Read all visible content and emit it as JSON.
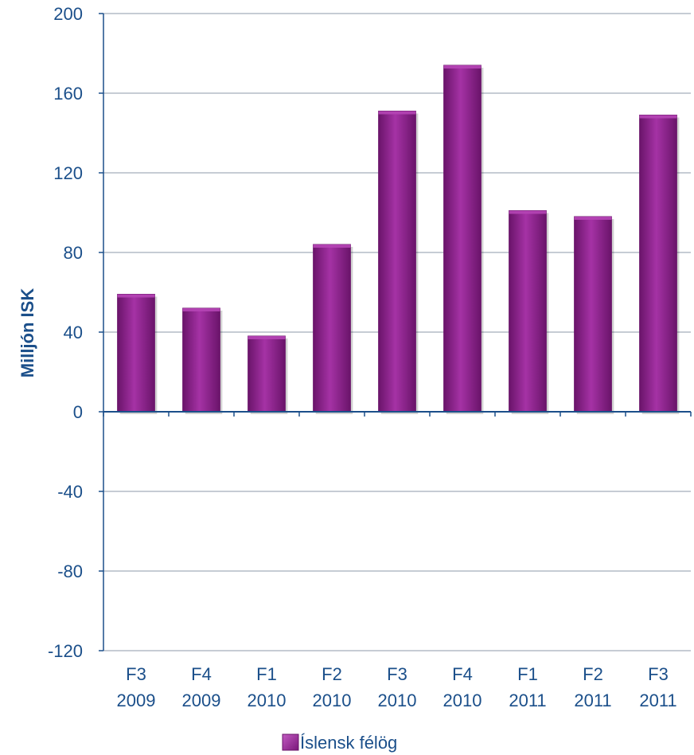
{
  "chart_data": {
    "type": "bar",
    "categories": [
      [
        "F3",
        "2009"
      ],
      [
        "F4",
        "2009"
      ],
      [
        "F1",
        "2010"
      ],
      [
        "F2",
        "2010"
      ],
      [
        "F3",
        "2010"
      ],
      [
        "F4",
        "2010"
      ],
      [
        "F1",
        "2011"
      ],
      [
        "F2",
        "2011"
      ],
      [
        "F3",
        "2011"
      ]
    ],
    "series": [
      {
        "name": "Íslensk félög",
        "values": [
          59,
          52,
          38,
          84,
          151,
          174,
          101,
          98,
          149
        ]
      }
    ],
    "ylabel": "Milljón ISK",
    "xlabel": "",
    "title": "",
    "ylim": [
      -120,
      200
    ],
    "yticks": [
      "200",
      "160",
      "120",
      "80",
      "40",
      "0",
      "-40",
      "-80",
      "-120"
    ],
    "ytick_values": [
      200,
      160,
      120,
      80,
      40,
      0,
      -40,
      -80,
      -120
    ],
    "grid": true,
    "legend_position": "bottom-center",
    "colors": {
      "bar": "#8e1f8e",
      "bar_light": "#b545b5",
      "bar_dark": "#6a146a",
      "text": "#1b4f8a",
      "axis": "#1b4f8a",
      "grid": "#8c9aaa"
    }
  }
}
